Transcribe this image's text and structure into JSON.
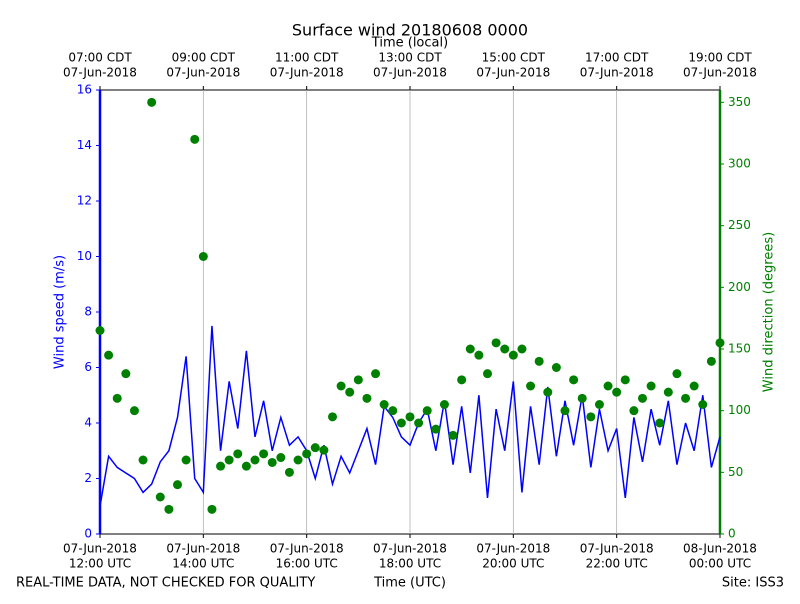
{
  "chart_data": {
    "type": "line-scatter",
    "title": "Surface wind 20180608 0000",
    "x_label": "Time (UTC)",
    "x2_label": "Time (local)",
    "y_label": "Wind speed (m/s)",
    "y2_label": "Wind direction (degrees)",
    "footer_left": "REAL-TIME DATA, NOT CHECKED FOR QUALITY",
    "footer_right": "Site: ISS3",
    "grid": true,
    "xlim": [
      "2018-06-07T12:00",
      "2018-06-08T00:00"
    ],
    "xticks": [
      {
        "value": "2018-06-07T12:00",
        "label": [
          "07-Jun-2018",
          "12:00 UTC"
        ]
      },
      {
        "value": "2018-06-07T14:00",
        "label": [
          "07-Jun-2018",
          "14:00 UTC"
        ]
      },
      {
        "value": "2018-06-07T16:00",
        "label": [
          "07-Jun-2018",
          "16:00 UTC"
        ]
      },
      {
        "value": "2018-06-07T18:00",
        "label": [
          "07-Jun-2018",
          "18:00 UTC"
        ]
      },
      {
        "value": "2018-06-07T20:00",
        "label": [
          "07-Jun-2018",
          "20:00 UTC"
        ]
      },
      {
        "value": "2018-06-07T22:00",
        "label": [
          "07-Jun-2018",
          "22:00 UTC"
        ]
      },
      {
        "value": "2018-06-08T00:00",
        "label": [
          "08-Jun-2018",
          "00:00 UTC"
        ]
      }
    ],
    "x2ticks": [
      {
        "value": "2018-06-07T12:00",
        "label": [
          "07:00 CDT",
          "07-Jun-2018"
        ]
      },
      {
        "value": "2018-06-07T14:00",
        "label": [
          "09:00 CDT",
          "07-Jun-2018"
        ]
      },
      {
        "value": "2018-06-07T16:00",
        "label": [
          "11:00 CDT",
          "07-Jun-2018"
        ]
      },
      {
        "value": "2018-06-07T18:00",
        "label": [
          "13:00 CDT",
          "07-Jun-2018"
        ]
      },
      {
        "value": "2018-06-07T20:00",
        "label": [
          "15:00 CDT",
          "07-Jun-2018"
        ]
      },
      {
        "value": "2018-06-07T22:00",
        "label": [
          "17:00 CDT",
          "07-Jun-2018"
        ]
      },
      {
        "value": "2018-06-08T00:00",
        "label": [
          "19:00 CDT",
          "07-Jun-2018"
        ]
      }
    ],
    "ylim": [
      0,
      16
    ],
    "yticks": [
      0,
      2,
      4,
      6,
      8,
      10,
      12,
      14,
      16
    ],
    "y2lim": [
      0,
      360
    ],
    "y2ticks": [
      0,
      50,
      100,
      150,
      200,
      250,
      300,
      350
    ],
    "x": [
      "2018-06-07T12:00",
      "2018-06-07T12:10",
      "2018-06-07T12:20",
      "2018-06-07T12:30",
      "2018-06-07T12:40",
      "2018-06-07T12:50",
      "2018-06-07T13:00",
      "2018-06-07T13:10",
      "2018-06-07T13:20",
      "2018-06-07T13:30",
      "2018-06-07T13:40",
      "2018-06-07T13:50",
      "2018-06-07T14:00",
      "2018-06-07T14:10",
      "2018-06-07T14:20",
      "2018-06-07T14:30",
      "2018-06-07T14:40",
      "2018-06-07T14:50",
      "2018-06-07T15:00",
      "2018-06-07T15:10",
      "2018-06-07T15:20",
      "2018-06-07T15:30",
      "2018-06-07T15:40",
      "2018-06-07T15:50",
      "2018-06-07T16:00",
      "2018-06-07T16:10",
      "2018-06-07T16:20",
      "2018-06-07T16:30",
      "2018-06-07T16:40",
      "2018-06-07T16:50",
      "2018-06-07T17:00",
      "2018-06-07T17:10",
      "2018-06-07T17:20",
      "2018-06-07T17:30",
      "2018-06-07T17:40",
      "2018-06-07T17:50",
      "2018-06-07T18:00",
      "2018-06-07T18:10",
      "2018-06-07T18:20",
      "2018-06-07T18:30",
      "2018-06-07T18:40",
      "2018-06-07T18:50",
      "2018-06-07T19:00",
      "2018-06-07T19:10",
      "2018-06-07T19:20",
      "2018-06-07T19:30",
      "2018-06-07T19:40",
      "2018-06-07T19:50",
      "2018-06-07T20:00",
      "2018-06-07T20:10",
      "2018-06-07T20:20",
      "2018-06-07T20:30",
      "2018-06-07T20:40",
      "2018-06-07T20:50",
      "2018-06-07T21:00",
      "2018-06-07T21:10",
      "2018-06-07T21:20",
      "2018-06-07T21:30",
      "2018-06-07T21:40",
      "2018-06-07T21:50",
      "2018-06-07T22:00",
      "2018-06-07T22:10",
      "2018-06-07T22:20",
      "2018-06-07T22:30",
      "2018-06-07T22:40",
      "2018-06-07T22:50",
      "2018-06-07T23:00",
      "2018-06-07T23:10",
      "2018-06-07T23:20",
      "2018-06-07T23:30",
      "2018-06-07T23:40",
      "2018-06-07T23:50",
      "2018-06-08T00:00"
    ],
    "series": [
      {
        "name": "Wind speed",
        "color": "#0000ff",
        "kind": "line",
        "values": [
          1.0,
          2.8,
          2.4,
          2.2,
          2.0,
          1.5,
          1.8,
          2.6,
          3.0,
          4.2,
          6.4,
          2.0,
          1.5,
          7.5,
          3.0,
          5.5,
          3.8,
          6.6,
          3.5,
          4.8,
          3.0,
          4.2,
          3.2,
          3.5,
          3.0,
          2.0,
          3.2,
          1.8,
          2.8,
          2.2,
          3.0,
          3.8,
          2.5,
          4.6,
          4.2,
          3.5,
          3.2,
          4.0,
          4.5,
          3.0,
          4.8,
          2.5,
          4.6,
          2.2,
          5.0,
          1.3,
          4.5,
          3.0,
          5.5,
          1.5,
          4.6,
          2.5,
          5.3,
          2.8,
          4.8,
          3.2,
          5.0,
          2.4,
          4.5,
          3.0,
          3.8,
          1.3,
          4.2,
          2.6,
          4.5,
          3.2,
          4.8,
          2.5,
          4.0,
          3.0,
          5.0,
          2.4,
          3.5
        ]
      },
      {
        "name": "Wind direction",
        "color": "#008000",
        "kind": "scatter",
        "axis": "y2",
        "values": [
          165,
          145,
          110,
          130,
          100,
          60,
          350,
          30,
          20,
          40,
          60,
          320,
          225,
          20,
          55,
          60,
          65,
          55,
          60,
          65,
          58,
          62,
          50,
          60,
          65,
          70,
          68,
          95,
          120,
          115,
          125,
          110,
          130,
          105,
          100,
          90,
          95,
          90,
          100,
          85,
          105,
          80,
          125,
          150,
          145,
          130,
          155,
          150,
          145,
          150,
          120,
          140,
          115,
          135,
          100,
          125,
          110,
          95,
          105,
          120,
          115,
          125,
          100,
          110,
          120,
          90,
          115,
          130,
          110,
          120,
          105,
          140,
          155
        ]
      }
    ]
  }
}
